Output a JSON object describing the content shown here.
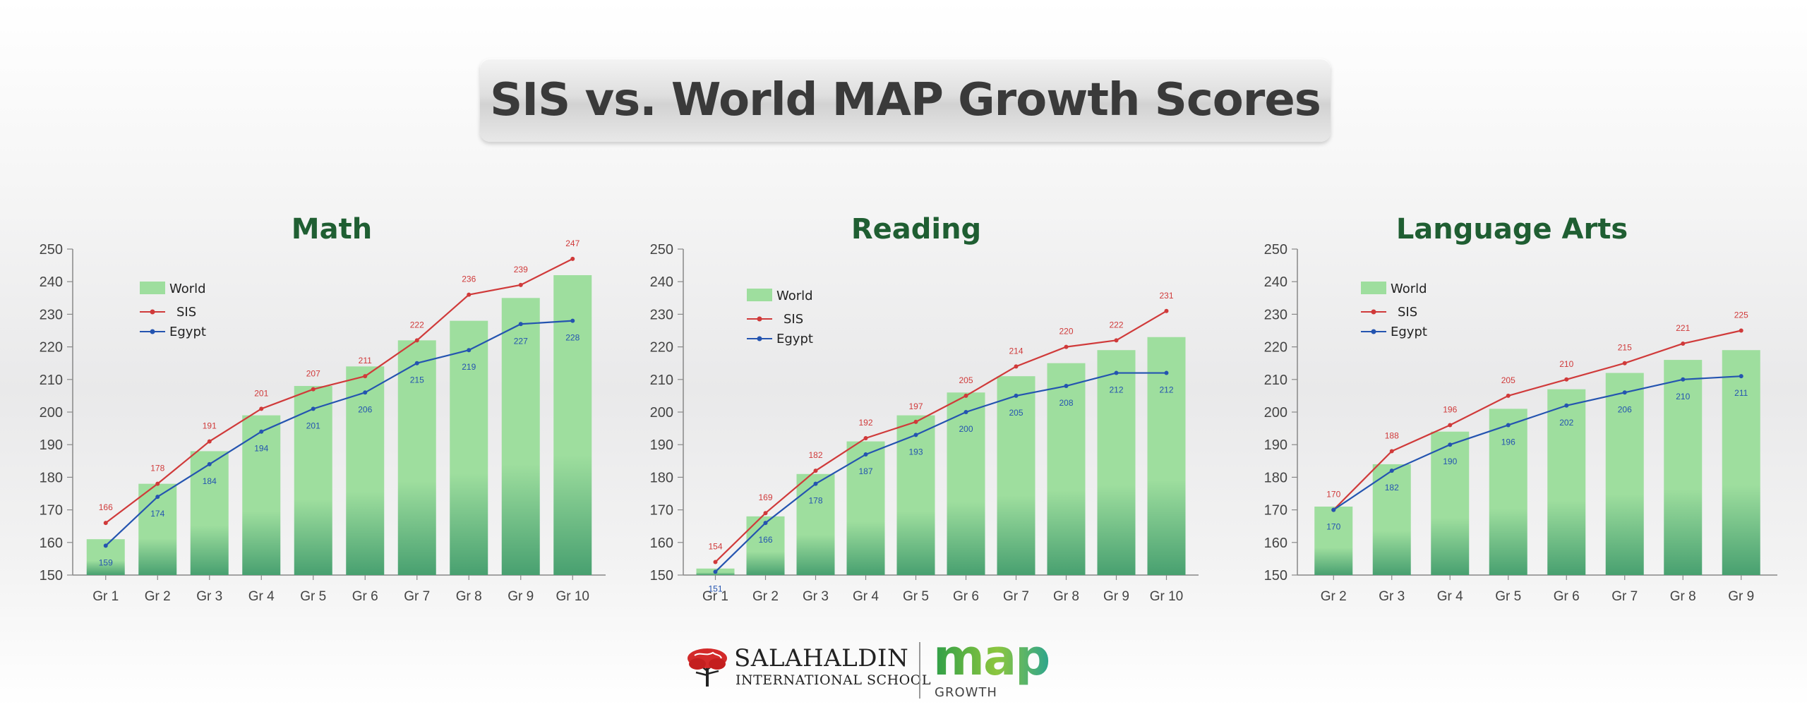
{
  "title": "SIS vs. World MAP Growth Scores",
  "colors": {
    "bar_top": "#9ede9e",
    "bar_bottom": "#48a070",
    "sis": "#d03a3a",
    "egypt": "#2454b0",
    "panel_title": "#1f5e32",
    "axis": "#888888",
    "tick_text": "#444444"
  },
  "legend": {
    "world": "World",
    "sis": "SIS",
    "egypt": "Egypt"
  },
  "chart_data": [
    {
      "type": "bar",
      "title": "Math",
      "categories": [
        "Gr 1",
        "Gr 2",
        "Gr 3",
        "Gr 4",
        "Gr 5",
        "Gr 6",
        "Gr 7",
        "Gr 8",
        "Gr 9",
        "Gr 10"
      ],
      "ylim": [
        150,
        250
      ],
      "yticks": [
        150,
        160,
        170,
        180,
        190,
        200,
        210,
        220,
        230,
        240,
        250
      ],
      "series": [
        {
          "name": "World",
          "kind": "bar",
          "values": [
            161,
            178,
            188,
            199,
            208,
            214,
            222,
            228,
            235,
            242
          ]
        },
        {
          "name": "SIS",
          "kind": "line",
          "values": [
            166,
            178,
            191,
            201,
            207,
            211,
            222,
            236,
            239,
            247
          ]
        },
        {
          "name": "Egypt",
          "kind": "line",
          "values": [
            159,
            174,
            184,
            194,
            201,
            206,
            215,
            219,
            227,
            228
          ]
        }
      ],
      "legend_position": "top-left",
      "grid": false
    },
    {
      "type": "bar",
      "title": "Reading",
      "categories": [
        "Gr 1",
        "Gr 2",
        "Gr 3",
        "Gr 4",
        "Gr 5",
        "Gr 6",
        "Gr 7",
        "Gr 8",
        "Gr 9",
        "Gr 10"
      ],
      "ylim": [
        150,
        250
      ],
      "yticks": [
        150,
        160,
        170,
        180,
        190,
        200,
        210,
        220,
        230,
        240,
        250
      ],
      "series": [
        {
          "name": "World",
          "kind": "bar",
          "values": [
            152,
            168,
            181,
            191,
            199,
            206,
            211,
            215,
            219,
            223
          ]
        },
        {
          "name": "SIS",
          "kind": "line",
          "values": [
            154,
            169,
            182,
            192,
            197,
            205,
            214,
            220,
            222,
            231
          ]
        },
        {
          "name": "Egypt",
          "kind": "line",
          "values": [
            151,
            166,
            178,
            187,
            193,
            200,
            205,
            208,
            212,
            212
          ]
        }
      ],
      "legend_position": "top-left",
      "grid": false
    },
    {
      "type": "bar",
      "title": "Language Arts",
      "categories": [
        "Gr 2",
        "Gr 3",
        "Gr 4",
        "Gr 5",
        "Gr 6",
        "Gr 7",
        "Gr 8",
        "Gr 9"
      ],
      "ylim": [
        150,
        250
      ],
      "yticks": [
        150,
        160,
        170,
        180,
        190,
        200,
        210,
        220,
        230,
        240,
        250
      ],
      "series": [
        {
          "name": "World",
          "kind": "bar",
          "values": [
            171,
            184,
            194,
            201,
            207,
            212,
            216,
            219
          ]
        },
        {
          "name": "SIS",
          "kind": "line",
          "values": [
            170,
            188,
            196,
            205,
            210,
            215,
            221,
            225
          ]
        },
        {
          "name": "Egypt",
          "kind": "line",
          "values": [
            170,
            182,
            190,
            196,
            202,
            206,
            210,
            211
          ]
        }
      ],
      "legend_position": "top-left",
      "grid": false
    }
  ],
  "footer": {
    "school_line1": "SALAHALDIN",
    "school_line2": "INTERNATIONAL SCHOOL",
    "map_word": "map",
    "growth_word": "GROWTH"
  }
}
